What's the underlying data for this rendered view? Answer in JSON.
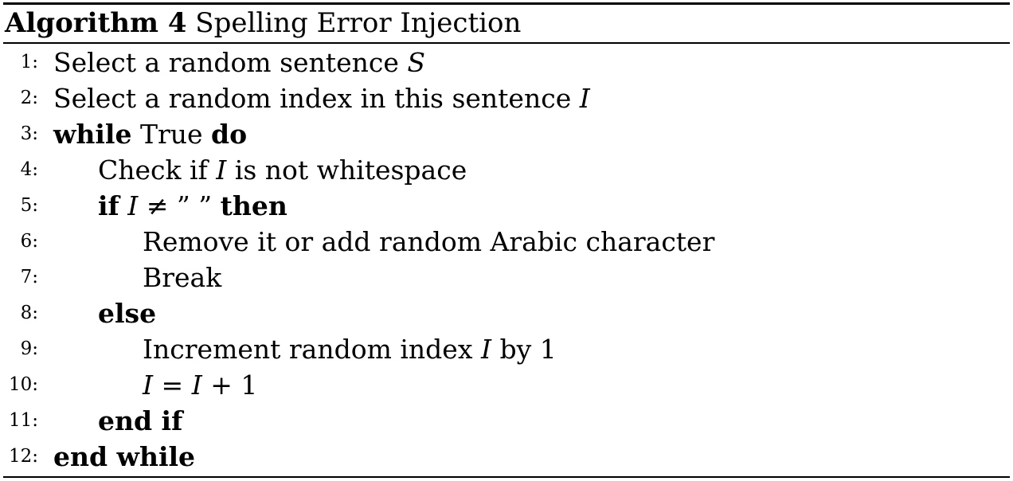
{
  "caption": {
    "label": "Algorithm 4",
    "title": "Spelling Error Injection"
  },
  "lines": [
    {
      "no": "1:",
      "parts": [
        {
          "t": "Select a random sentence "
        },
        {
          "t": "S",
          "s": "mi"
        }
      ]
    },
    {
      "no": "2:",
      "parts": [
        {
          "t": "Select a random index in this sentence "
        },
        {
          "t": "I",
          "s": "mi"
        }
      ]
    },
    {
      "no": "3:",
      "parts": [
        {
          "t": "while",
          "s": "kw"
        },
        {
          "t": " True "
        },
        {
          "t": "do",
          "s": "kw"
        }
      ]
    },
    {
      "no": "4:",
      "parts": [
        {
          "t": "Check if "
        },
        {
          "t": "I",
          "s": "mi"
        },
        {
          "t": " is not whitespace"
        }
      ]
    },
    {
      "no": "5:",
      "parts": [
        {
          "t": "if",
          "s": "kw"
        },
        {
          "t": " "
        },
        {
          "t": "I",
          "s": "mi"
        },
        {
          "t": " ≠ ” ” "
        },
        {
          "t": "then",
          "s": "kw"
        }
      ]
    },
    {
      "no": "6:",
      "parts": [
        {
          "t": "Remove it or add random Arabic character"
        }
      ]
    },
    {
      "no": "7:",
      "parts": [
        {
          "t": "Break"
        }
      ]
    },
    {
      "no": "8:",
      "parts": [
        {
          "t": "else",
          "s": "kw"
        }
      ]
    },
    {
      "no": "9:",
      "parts": [
        {
          "t": "Increment random index "
        },
        {
          "t": "I",
          "s": "mi"
        },
        {
          "t": " by 1"
        }
      ]
    },
    {
      "no": "10:",
      "parts": [
        {
          "t": "I",
          "s": "mi"
        },
        {
          "t": " = "
        },
        {
          "t": "I",
          "s": "mi"
        },
        {
          "t": " + 1"
        }
      ]
    },
    {
      "no": "11:",
      "parts": [
        {
          "t": "end if",
          "s": "kw"
        }
      ]
    },
    {
      "no": "12:",
      "parts": [
        {
          "t": "end while",
          "s": "kw"
        }
      ]
    }
  ]
}
